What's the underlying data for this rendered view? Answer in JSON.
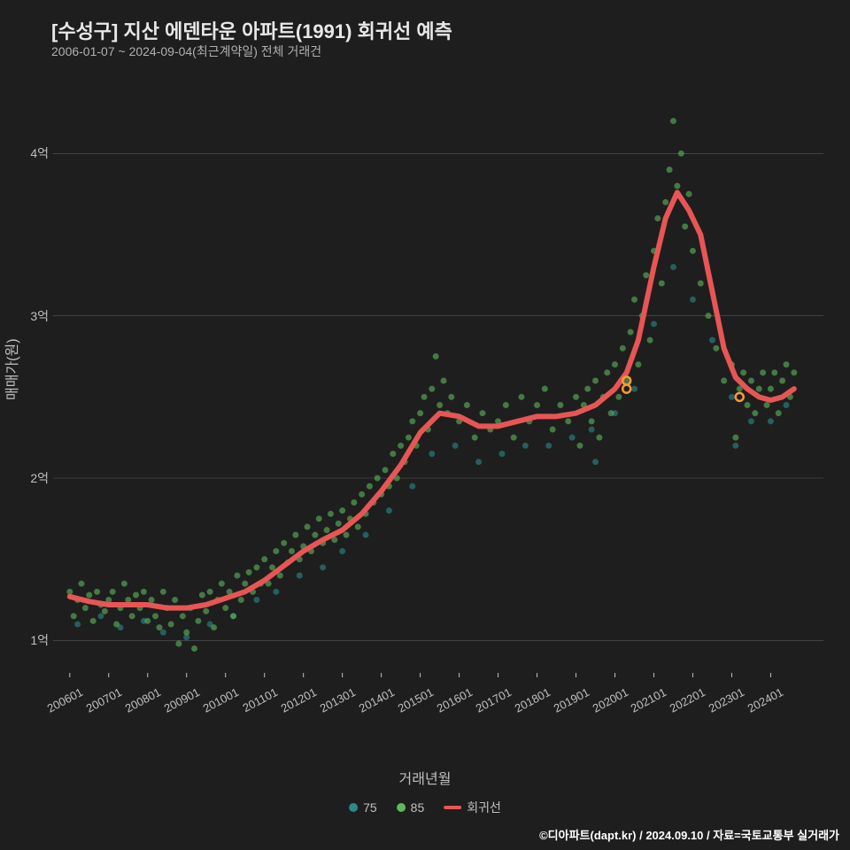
{
  "title": "[수성구] 지산 에덴타운 아파트(1991) 회귀선 예측",
  "subtitle": "2006-01-07 ~ 2024-09-04(최근계약일) 전체 거래건",
  "ylabel": "매매가(원)",
  "xlabel": "거래년월",
  "credit": "©디아파트(dapt.kr) / 2024.09.10 / 자료=국토교통부 실거래가",
  "legend": {
    "series75": "75",
    "series85": "85",
    "regression": "회귀선"
  },
  "styling": {
    "background": "#1e1e1e",
    "text_color": "#e8e8e8",
    "subtitle_color": "#b0b0b0",
    "axis_color": "#c0c0c0",
    "grid_color": "#5a5a5a",
    "title_fontsize": 22,
    "subtitle_fontsize": 14,
    "label_fontsize": 16,
    "tick_fontsize": 13
  },
  "chart": {
    "type": "scatter_with_line",
    "xlim": [
      2005.8,
      2024.9
    ],
    "ylim": [
      0.8,
      4.4
    ],
    "y_ticks": [
      {
        "value": 1,
        "label": "1억"
      },
      {
        "value": 2,
        "label": "2억"
      },
      {
        "value": 3,
        "label": "3억"
      },
      {
        "value": 4,
        "label": "4억"
      }
    ],
    "x_ticks": [
      {
        "value": 2006.0,
        "label": "200601"
      },
      {
        "value": 2007.0,
        "label": "200701"
      },
      {
        "value": 2008.0,
        "label": "200801"
      },
      {
        "value": 2009.0,
        "label": "200901"
      },
      {
        "value": 2010.0,
        "label": "201001"
      },
      {
        "value": 2011.0,
        "label": "201101"
      },
      {
        "value": 2012.0,
        "label": "201201"
      },
      {
        "value": 2013.0,
        "label": "201301"
      },
      {
        "value": 2014.0,
        "label": "201401"
      },
      {
        "value": 2015.0,
        "label": "201501"
      },
      {
        "value": 2016.0,
        "label": "201601"
      },
      {
        "value": 2017.0,
        "label": "201701"
      },
      {
        "value": 2018.0,
        "label": "201801"
      },
      {
        "value": 2019.0,
        "label": "201901"
      },
      {
        "value": 2020.0,
        "label": "202001"
      },
      {
        "value": 2021.0,
        "label": "202101"
      },
      {
        "value": 2022.0,
        "label": "202201"
      },
      {
        "value": 2023.0,
        "label": "202301"
      },
      {
        "value": 2024.0,
        "label": "202401"
      }
    ],
    "colors": {
      "series75": "#2a8a8a",
      "series85": "#5eb85e",
      "regression": "#e85555",
      "highlight": "#ff9933"
    },
    "marker_radius": 3.5,
    "marker_opacity": 0.6,
    "line_width": 6,
    "regression_points": [
      [
        2006.0,
        1.27
      ],
      [
        2006.5,
        1.24
      ],
      [
        2007.0,
        1.22
      ],
      [
        2007.5,
        1.22
      ],
      [
        2008.0,
        1.22
      ],
      [
        2008.5,
        1.2
      ],
      [
        2009.0,
        1.2
      ],
      [
        2009.5,
        1.22
      ],
      [
        2010.0,
        1.26
      ],
      [
        2010.5,
        1.3
      ],
      [
        2011.0,
        1.37
      ],
      [
        2011.5,
        1.46
      ],
      [
        2012.0,
        1.55
      ],
      [
        2012.5,
        1.62
      ],
      [
        2013.0,
        1.68
      ],
      [
        2013.5,
        1.78
      ],
      [
        2014.0,
        1.92
      ],
      [
        2014.5,
        2.08
      ],
      [
        2015.0,
        2.28
      ],
      [
        2015.5,
        2.4
      ],
      [
        2016.0,
        2.38
      ],
      [
        2016.5,
        2.32
      ],
      [
        2017.0,
        2.32
      ],
      [
        2017.5,
        2.35
      ],
      [
        2018.0,
        2.38
      ],
      [
        2018.5,
        2.38
      ],
      [
        2019.0,
        2.4
      ],
      [
        2019.5,
        2.45
      ],
      [
        2020.0,
        2.55
      ],
      [
        2020.3,
        2.65
      ],
      [
        2020.6,
        2.85
      ],
      [
        2021.0,
        3.3
      ],
      [
        2021.3,
        3.6
      ],
      [
        2021.6,
        3.76
      ],
      [
        2021.9,
        3.65
      ],
      [
        2022.2,
        3.5
      ],
      [
        2022.5,
        3.15
      ],
      [
        2022.8,
        2.8
      ],
      [
        2023.1,
        2.62
      ],
      [
        2023.4,
        2.55
      ],
      [
        2023.7,
        2.5
      ],
      [
        2024.0,
        2.48
      ],
      [
        2024.3,
        2.5
      ],
      [
        2024.6,
        2.55
      ]
    ],
    "scatter85": [
      [
        2006.0,
        1.3
      ],
      [
        2006.1,
        1.15
      ],
      [
        2006.2,
        1.25
      ],
      [
        2006.3,
        1.35
      ],
      [
        2006.4,
        1.2
      ],
      [
        2006.5,
        1.28
      ],
      [
        2006.6,
        1.12
      ],
      [
        2006.7,
        1.3
      ],
      [
        2006.8,
        1.22
      ],
      [
        2006.9,
        1.18
      ],
      [
        2007.0,
        1.25
      ],
      [
        2007.1,
        1.3
      ],
      [
        2007.2,
        1.1
      ],
      [
        2007.3,
        1.2
      ],
      [
        2007.4,
        1.35
      ],
      [
        2007.5,
        1.25
      ],
      [
        2007.6,
        1.15
      ],
      [
        2007.7,
        1.28
      ],
      [
        2007.8,
        1.2
      ],
      [
        2007.9,
        1.3
      ],
      [
        2008.0,
        1.12
      ],
      [
        2008.1,
        1.25
      ],
      [
        2008.2,
        1.15
      ],
      [
        2008.3,
        1.08
      ],
      [
        2008.4,
        1.3
      ],
      [
        2008.5,
        1.2
      ],
      [
        2008.6,
        1.1
      ],
      [
        2008.7,
        1.25
      ],
      [
        2008.8,
        0.98
      ],
      [
        2008.9,
        1.15
      ],
      [
        2009.0,
        1.05
      ],
      [
        2009.1,
        1.2
      ],
      [
        2009.2,
        0.95
      ],
      [
        2009.3,
        1.12
      ],
      [
        2009.4,
        1.28
      ],
      [
        2009.5,
        1.18
      ],
      [
        2009.6,
        1.3
      ],
      [
        2009.7,
        1.08
      ],
      [
        2009.8,
        1.25
      ],
      [
        2009.9,
        1.35
      ],
      [
        2010.0,
        1.2
      ],
      [
        2010.1,
        1.3
      ],
      [
        2010.2,
        1.15
      ],
      [
        2010.3,
        1.4
      ],
      [
        2010.4,
        1.25
      ],
      [
        2010.5,
        1.35
      ],
      [
        2010.6,
        1.42
      ],
      [
        2010.7,
        1.3
      ],
      [
        2010.8,
        1.45
      ],
      [
        2010.9,
        1.35
      ],
      [
        2011.0,
        1.5
      ],
      [
        2011.1,
        1.35
      ],
      [
        2011.2,
        1.45
      ],
      [
        2011.3,
        1.55
      ],
      [
        2011.4,
        1.4
      ],
      [
        2011.5,
        1.6
      ],
      [
        2011.6,
        1.48
      ],
      [
        2011.7,
        1.55
      ],
      [
        2011.8,
        1.65
      ],
      [
        2011.9,
        1.5
      ],
      [
        2012.0,
        1.58
      ],
      [
        2012.1,
        1.7
      ],
      [
        2012.2,
        1.55
      ],
      [
        2012.3,
        1.65
      ],
      [
        2012.4,
        1.75
      ],
      [
        2012.5,
        1.6
      ],
      [
        2012.6,
        1.68
      ],
      [
        2012.7,
        1.78
      ],
      [
        2012.8,
        1.62
      ],
      [
        2012.9,
        1.72
      ],
      [
        2013.0,
        1.8
      ],
      [
        2013.1,
        1.65
      ],
      [
        2013.2,
        1.75
      ],
      [
        2013.3,
        1.85
      ],
      [
        2013.4,
        1.7
      ],
      [
        2013.5,
        1.9
      ],
      [
        2013.6,
        1.78
      ],
      [
        2013.7,
        1.95
      ],
      [
        2013.8,
        1.85
      ],
      [
        2013.9,
        2.0
      ],
      [
        2014.0,
        1.9
      ],
      [
        2014.1,
        2.05
      ],
      [
        2014.2,
        1.95
      ],
      [
        2014.3,
        2.15
      ],
      [
        2014.4,
        2.0
      ],
      [
        2014.5,
        2.2
      ],
      [
        2014.6,
        2.1
      ],
      [
        2014.7,
        2.25
      ],
      [
        2014.8,
        2.35
      ],
      [
        2014.9,
        2.2
      ],
      [
        2015.0,
        2.4
      ],
      [
        2015.1,
        2.5
      ],
      [
        2015.2,
        2.3
      ],
      [
        2015.3,
        2.55
      ],
      [
        2015.4,
        2.75
      ],
      [
        2015.5,
        2.45
      ],
      [
        2015.6,
        2.6
      ],
      [
        2015.7,
        2.4
      ],
      [
        2015.8,
        2.5
      ],
      [
        2016.0,
        2.35
      ],
      [
        2016.2,
        2.45
      ],
      [
        2016.4,
        2.25
      ],
      [
        2016.6,
        2.4
      ],
      [
        2016.8,
        2.3
      ],
      [
        2017.0,
        2.35
      ],
      [
        2017.2,
        2.45
      ],
      [
        2017.4,
        2.25
      ],
      [
        2017.6,
        2.5
      ],
      [
        2017.8,
        2.35
      ],
      [
        2018.0,
        2.45
      ],
      [
        2018.2,
        2.55
      ],
      [
        2018.4,
        2.3
      ],
      [
        2018.6,
        2.45
      ],
      [
        2018.8,
        2.35
      ],
      [
        2019.0,
        2.5
      ],
      [
        2019.1,
        2.2
      ],
      [
        2019.2,
        2.45
      ],
      [
        2019.3,
        2.55
      ],
      [
        2019.4,
        2.35
      ],
      [
        2019.5,
        2.6
      ],
      [
        2019.6,
        2.25
      ],
      [
        2019.7,
        2.5
      ],
      [
        2019.8,
        2.65
      ],
      [
        2019.9,
        2.4
      ],
      [
        2020.0,
        2.7
      ],
      [
        2020.1,
        2.5
      ],
      [
        2020.2,
        2.8
      ],
      [
        2020.3,
        2.6
      ],
      [
        2020.4,
        2.9
      ],
      [
        2020.5,
        3.1
      ],
      [
        2020.6,
        2.7
      ],
      [
        2020.7,
        3.0
      ],
      [
        2020.8,
        3.25
      ],
      [
        2020.9,
        2.85
      ],
      [
        2021.0,
        3.4
      ],
      [
        2021.1,
        3.6
      ],
      [
        2021.2,
        3.2
      ],
      [
        2021.3,
        3.7
      ],
      [
        2021.4,
        3.9
      ],
      [
        2021.5,
        4.2
      ],
      [
        2021.6,
        3.8
      ],
      [
        2021.7,
        4.0
      ],
      [
        2021.8,
        3.55
      ],
      [
        2021.9,
        3.75
      ],
      [
        2022.0,
        3.4
      ],
      [
        2022.2,
        3.2
      ],
      [
        2022.4,
        3.0
      ],
      [
        2022.6,
        2.8
      ],
      [
        2022.8,
        2.6
      ],
      [
        2023.0,
        2.7
      ],
      [
        2023.1,
        2.25
      ],
      [
        2023.2,
        2.55
      ],
      [
        2023.3,
        2.65
      ],
      [
        2023.4,
        2.45
      ],
      [
        2023.5,
        2.6
      ],
      [
        2023.6,
        2.4
      ],
      [
        2023.7,
        2.55
      ],
      [
        2023.8,
        2.65
      ],
      [
        2023.9,
        2.45
      ],
      [
        2024.0,
        2.55
      ],
      [
        2024.1,
        2.65
      ],
      [
        2024.2,
        2.4
      ],
      [
        2024.3,
        2.6
      ],
      [
        2024.4,
        2.7
      ],
      [
        2024.5,
        2.5
      ],
      [
        2024.6,
        2.65
      ]
    ],
    "scatter75": [
      [
        2006.2,
        1.1
      ],
      [
        2006.8,
        1.15
      ],
      [
        2007.3,
        1.08
      ],
      [
        2007.9,
        1.12
      ],
      [
        2008.4,
        1.05
      ],
      [
        2009.0,
        1.02
      ],
      [
        2009.6,
        1.1
      ],
      [
        2010.2,
        1.15
      ],
      [
        2010.8,
        1.25
      ],
      [
        2011.3,
        1.3
      ],
      [
        2011.9,
        1.4
      ],
      [
        2012.5,
        1.45
      ],
      [
        2013.0,
        1.55
      ],
      [
        2013.6,
        1.65
      ],
      [
        2014.2,
        1.8
      ],
      [
        2014.8,
        1.95
      ],
      [
        2015.3,
        2.15
      ],
      [
        2015.9,
        2.2
      ],
      [
        2016.5,
        2.1
      ],
      [
        2017.1,
        2.15
      ],
      [
        2017.7,
        2.2
      ],
      [
        2018.3,
        2.2
      ],
      [
        2018.9,
        2.25
      ],
      [
        2019.4,
        2.3
      ],
      [
        2019.5,
        2.1
      ],
      [
        2020.0,
        2.4
      ],
      [
        2020.5,
        2.55
      ],
      [
        2021.0,
        2.95
      ],
      [
        2021.5,
        3.3
      ],
      [
        2022.0,
        3.1
      ],
      [
        2022.5,
        2.85
      ],
      [
        2023.0,
        2.5
      ],
      [
        2023.1,
        2.2
      ],
      [
        2023.5,
        2.35
      ],
      [
        2024.0,
        2.35
      ],
      [
        2024.4,
        2.45
      ]
    ],
    "highlight_points": [
      [
        2020.3,
        2.6
      ],
      [
        2020.3,
        2.55
      ],
      [
        2023.2,
        2.5
      ]
    ]
  }
}
